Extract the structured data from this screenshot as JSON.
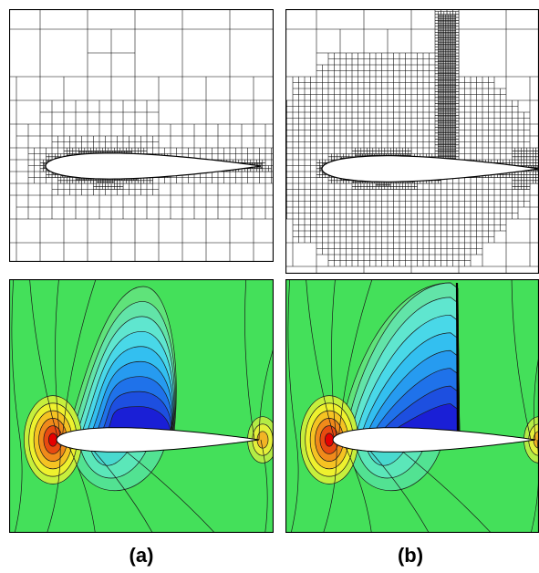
{
  "figure": {
    "labels": {
      "a": "(a)",
      "b": "(b)"
    },
    "colors": {
      "background_field": "#44e05a",
      "contour_line": "#1a1a1a",
      "mesh_line": "#000000",
      "airfoil_fill": "#ffffff",
      "stagnation_core": "#e60000",
      "dark_blue": "#1a1fd6"
    }
  }
}
